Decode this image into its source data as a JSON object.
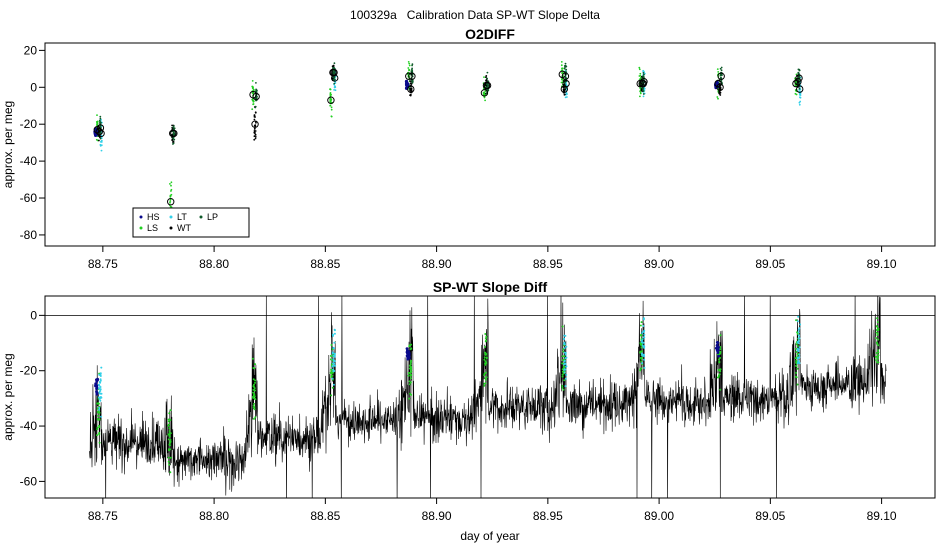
{
  "title": "100329a   Calibration Data SP-WT Slope Delta",
  "colors": {
    "HS": "#0a0a8c",
    "LS": "#22d022",
    "LT": "#33d0e8",
    "WT": "#000000",
    "LP": "#0f5a2a",
    "trace": "#000000"
  },
  "chart_data": [
    {
      "type": "scatter",
      "title": "O2DIFF",
      "ylabel": "approx. per meg",
      "xlim": [
        88.724,
        89.124
      ],
      "ylim": [
        -86,
        24
      ],
      "xticks": [
        88.75,
        88.8,
        88.85,
        88.9,
        88.95,
        89.0,
        89.05,
        89.1
      ],
      "xtick_labels": [
        "88.75",
        "88.80",
        "88.85",
        "88.90",
        "88.95",
        "89.00",
        "89.05",
        "89.10"
      ],
      "yticks": [
        -80,
        -60,
        -40,
        -20,
        0,
        20
      ],
      "ytick_labels": [
        "-80",
        "-60",
        "-40",
        "-20",
        "0",
        "20"
      ],
      "grid": false,
      "legend": {
        "placement": "bottom-left",
        "entries": [
          {
            "label": "HS",
            "key": "HS"
          },
          {
            "label": "LS",
            "key": "LS"
          },
          {
            "label": "LT",
            "key": "LT"
          },
          {
            "label": "WT",
            "key": "WT"
          },
          {
            "label": "LP",
            "key": "LP"
          }
        ]
      },
      "clusters": [
        {
          "x": 88.748,
          "HS": -25,
          "LS": -23,
          "LT": -25,
          "WT": -24,
          "LP": -22
        },
        {
          "x": 88.781,
          "LS": -62,
          "WT": -25,
          "LP": -25
        },
        {
          "x": 88.818,
          "LS": -4,
          "WT": -20,
          "LP": -5
        },
        {
          "x": 88.853,
          "LS": -7,
          "LT": 5,
          "WT": 8,
          "LP": 8
        },
        {
          "x": 88.888,
          "HS": 1,
          "LS": 6,
          "WT": -1,
          "LP": 6
        },
        {
          "x": 88.922,
          "LS": -3,
          "WT": 1,
          "LP": 1
        },
        {
          "x": 88.957,
          "LS": 7,
          "LT": 2,
          "WT": -1,
          "LP": 6
        },
        {
          "x": 88.992,
          "LS": 2,
          "LT": 3,
          "WT": 2,
          "LP": 2
        },
        {
          "x": 89.027,
          "HS": 1,
          "LS": 2,
          "WT": 0,
          "LP": 6
        },
        {
          "x": 89.062,
          "LS": 2,
          "LT": -1,
          "WT": 3,
          "LP": 5
        }
      ]
    },
    {
      "type": "line",
      "title": "SP-WT Slope Diff",
      "xlabel": "day of year",
      "ylabel": "approx. per meg",
      "xlim": [
        88.724,
        89.124
      ],
      "ylim": [
        -66,
        7
      ],
      "xticks": [
        88.75,
        88.8,
        88.85,
        88.9,
        88.95,
        89.0,
        89.05,
        89.1
      ],
      "xtick_labels": [
        "88.75",
        "88.80",
        "88.85",
        "88.90",
        "88.95",
        "89.00",
        "89.05",
        "89.10"
      ],
      "yticks": [
        -60,
        -40,
        -20,
        0
      ],
      "ytick_labels": [
        "-60",
        "-40",
        "-20",
        "0"
      ],
      "hline": 0,
      "grid": false,
      "x_range": [
        88.744,
        89.102
      ],
      "segments": [
        {
          "start": 88.744,
          "end": 88.78,
          "level": -46
        },
        {
          "start": 88.78,
          "end": 88.818,
          "level": -52
        },
        {
          "start": 88.818,
          "end": 88.853,
          "level": -44
        },
        {
          "start": 88.853,
          "end": 88.888,
          "level": -38
        },
        {
          "start": 88.888,
          "end": 88.922,
          "level": -37
        },
        {
          "start": 88.922,
          "end": 88.957,
          "level": -33
        },
        {
          "start": 88.957,
          "end": 88.992,
          "level": -32
        },
        {
          "start": 88.992,
          "end": 89.027,
          "level": -31
        },
        {
          "start": 89.027,
          "end": 89.062,
          "level": -30
        },
        {
          "start": 89.062,
          "end": 89.102,
          "level": -25
        }
      ],
      "cal_events": [
        {
          "x": 88.748,
          "HS": -25,
          "LS": -35,
          "LT": -28
        },
        {
          "x": 88.78,
          "LS": -45
        },
        {
          "x": 88.818,
          "LS": -28
        },
        {
          "x": 88.853,
          "LS": -18,
          "LT": -14
        },
        {
          "x": 88.888,
          "HS": -14,
          "LS": -20
        },
        {
          "x": 88.922,
          "LS": -15
        },
        {
          "x": 88.957,
          "LS": -17,
          "LT": -15
        },
        {
          "x": 88.992,
          "LS": -12,
          "LT": -10
        },
        {
          "x": 89.027,
          "HS": -12,
          "LS": -15
        },
        {
          "x": 89.062,
          "LS": -14,
          "LT": -10
        },
        {
          "x": 89.098,
          "LS": -10
        }
      ]
    }
  ]
}
